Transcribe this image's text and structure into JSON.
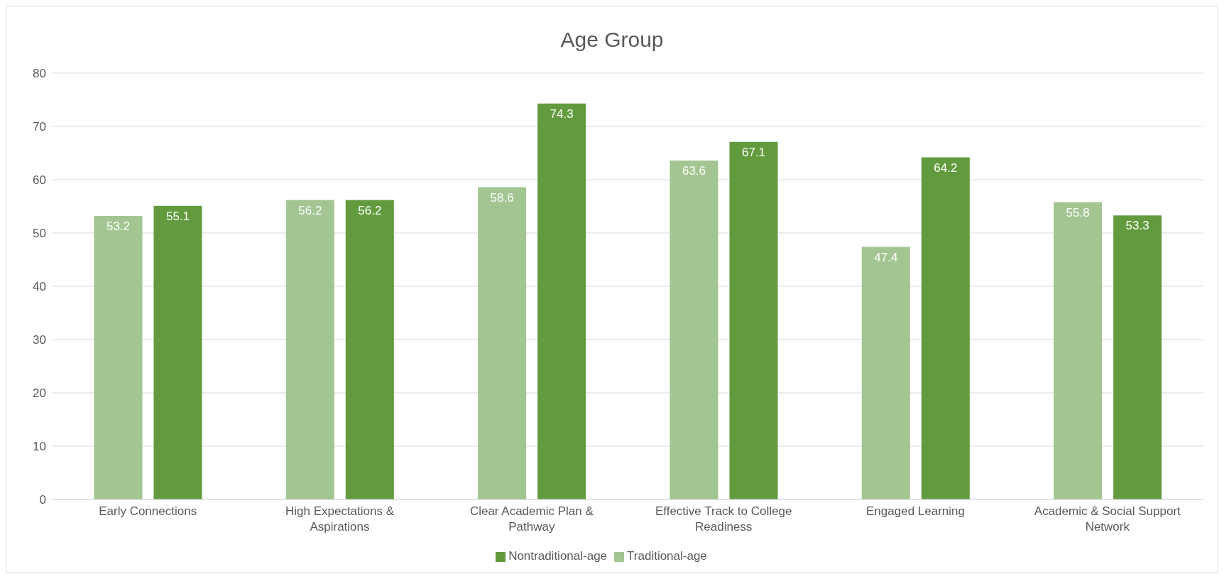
{
  "chart_data": {
    "type": "bar",
    "title": "Age Group",
    "categories": [
      "Early Connections",
      "High Expectations & Aspirations",
      "Clear Academic Plan & Pathway",
      "Effective Track to College Readiness",
      "Engaged Learning",
      "Academic & Social Support Network"
    ],
    "series": [
      {
        "name": "Traditional-age",
        "color": "#a2c591",
        "values": [
          53.2,
          56.2,
          58.6,
          63.6,
          47.4,
          55.8
        ]
      },
      {
        "name": "Nontraditional-age",
        "color": "#629b3e",
        "values": [
          55.1,
          56.2,
          74.3,
          67.1,
          64.2,
          53.3
        ]
      }
    ],
    "ylim": [
      0,
      80
    ],
    "yticks": [
      0,
      10,
      20,
      30,
      40,
      50,
      60,
      70,
      80
    ],
    "grid": "y",
    "legend": "bottom",
    "data_labels": true
  }
}
